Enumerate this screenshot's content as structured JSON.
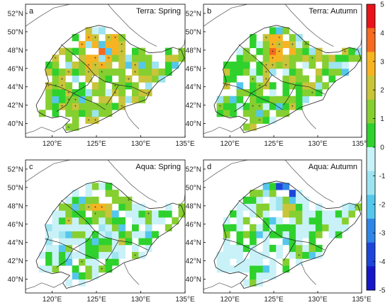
{
  "figure": {
    "panels": [
      {
        "letter": "a",
        "title": "Terra: Spring",
        "seed": 11,
        "bias": 1.15,
        "light": 0.02
      },
      {
        "letter": "b",
        "title": "Terra: Autumn",
        "seed": 23,
        "bias": 0.95,
        "light": 0.06
      },
      {
        "letter": "c",
        "title": "Aqua: Spring",
        "seed": 37,
        "bias": 0.75,
        "light": 0.45
      },
      {
        "letter": "d",
        "title": "Aqua: Autumn",
        "seed": 53,
        "bias": 0.55,
        "light": 0.5
      }
    ],
    "lat_labels": [
      "52°N",
      "50°N",
      "48°N",
      "46°N",
      "44°N",
      "42°N",
      "40°N"
    ],
    "lon_labels": [
      "120°E",
      "125°E",
      "130°E",
      "135°E"
    ],
    "extent": {
      "lon_min": 117,
      "lon_max": 135,
      "lat_min": 38.5,
      "lat_max": 53
    },
    "colorbar": {
      "ticks": [
        "5",
        "4",
        "3",
        "2",
        "1",
        "0",
        "-1",
        "-2",
        "-3",
        "-4",
        "-5"
      ],
      "colors": [
        "#e8141a",
        "#f56b1f",
        "#f7b321",
        "#c9c43a",
        "#86cf30",
        "#2fd12d",
        "#c9f2f8",
        "#9de4f0",
        "#55c7ec",
        "#2f86e6",
        "#1d46d9",
        "#1717c8"
      ]
    }
  }
}
